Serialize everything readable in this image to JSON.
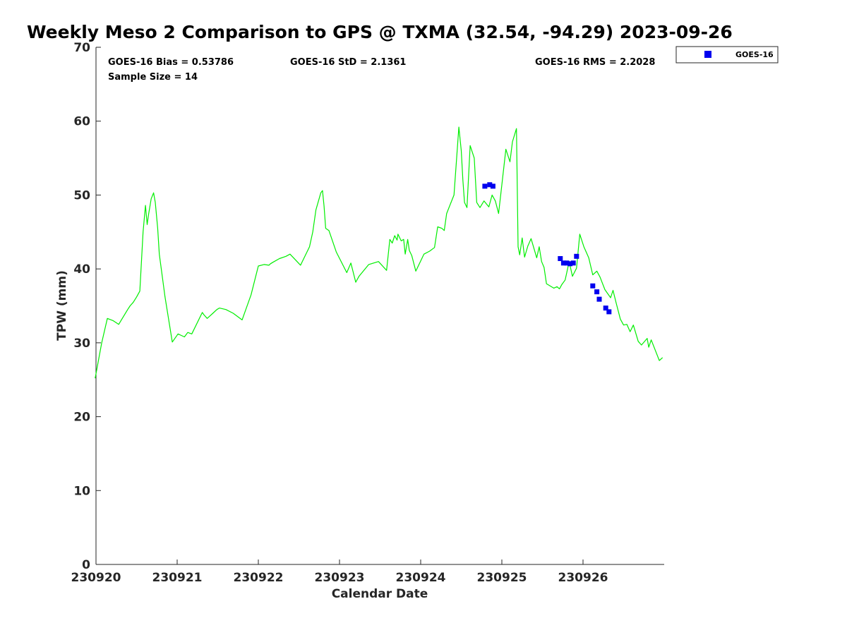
{
  "chart_data": {
    "type": "line",
    "title": "Weekly Meso 2 Comparison to GPS @ TXMA (32.54, -94.29) 2023-09-26",
    "xlabel": "Calendar Date",
    "ylabel": "TPW (mm)",
    "xlim": [
      230920,
      230927
    ],
    "ylim": [
      0,
      70
    ],
    "x_ticks": [
      230920,
      230921,
      230922,
      230923,
      230924,
      230925,
      230926
    ],
    "y_ticks": [
      0,
      10,
      20,
      30,
      40,
      50,
      60,
      70
    ],
    "x_tick_labels": [
      "230920",
      "230921",
      "230922",
      "230923",
      "230924",
      "230925",
      "230926"
    ],
    "y_tick_labels": [
      "0",
      "10",
      "20",
      "30",
      "40",
      "50",
      "60",
      "70"
    ],
    "stats": {
      "bias": "GOES-16 Bias = 0.53786",
      "std": "GOES-16 StD = 2.1361",
      "rms": "GOES-16 RMS = 2.2028",
      "sample": "Sample Size = 14"
    },
    "legend": {
      "placement": "top-right-outside",
      "entries": [
        "GOES-16"
      ]
    },
    "grid": false,
    "series": [
      {
        "kind": "line",
        "color": "#00ee00",
        "x": [
          230919.99,
          230920.07,
          230920.14,
          230920.21,
          230920.28,
          230920.39,
          230920.42,
          230920.46,
          230920.5,
          230920.54,
          230920.58,
          230920.61,
          230920.63,
          230920.65,
          230920.68,
          230920.71,
          230920.73,
          230920.76,
          230920.78,
          230920.85,
          230920.94,
          230921.01,
          230921.09,
          230921.13,
          230921.18,
          230921.31,
          230921.33,
          230921.37,
          230921.41,
          230921.44,
          230921.49,
          230921.52,
          230921.6,
          230921.69,
          230921.8,
          230921.91,
          230922.0,
          230922.07,
          230922.13,
          230922.15,
          230922.18,
          230922.26,
          230922.34,
          230922.39,
          230922.52,
          230922.63,
          230922.67,
          230922.71,
          230922.77,
          230922.79,
          230922.81,
          230922.83,
          230922.87,
          230922.96,
          230923.09,
          230923.14,
          230923.2,
          230923.24,
          230923.36,
          230923.48,
          230923.58,
          230923.62,
          230923.65,
          230923.68,
          230923.71,
          230923.72,
          230923.76,
          230923.79,
          230923.81,
          230923.84,
          230923.86,
          230923.89,
          230923.94,
          230924.04,
          230924.11,
          230924.17,
          230924.21,
          230924.26,
          230924.29,
          230924.32,
          230924.41,
          230924.47,
          230924.5,
          230924.52,
          230924.54,
          230924.57,
          230924.61,
          230924.66,
          230924.69,
          230924.73,
          230924.78,
          230924.81,
          230924.84,
          230924.88,
          230924.92,
          230924.96,
          230925.05,
          230925.1,
          230925.13,
          230925.18,
          230925.2,
          230925.22,
          230925.25,
          230925.28,
          230925.32,
          230925.36,
          230925.43,
          230925.46,
          230925.49,
          230925.52,
          230925.55,
          230925.64,
          230925.68,
          230925.71,
          230925.74,
          230925.78,
          230925.83,
          230925.87,
          230925.92,
          230925.96,
          230926.01,
          230926.07,
          230926.12,
          230926.17,
          230926.21,
          230926.27,
          230926.34,
          230926.37,
          230926.41,
          230926.46,
          230926.5,
          230926.54,
          230926.58,
          230926.62,
          230926.68,
          230926.72,
          230926.79,
          230926.81,
          230926.84,
          230926.94,
          230926.98
        ],
        "y": [
          25.2,
          30.0,
          33.3,
          33.0,
          32.5,
          34.5,
          35.0,
          35.5,
          36.2,
          37.0,
          45.0,
          48.6,
          46.0,
          47.5,
          49.5,
          50.3,
          49.0,
          45.5,
          42.0,
          36.2,
          30.1,
          31.2,
          30.8,
          31.4,
          31.2,
          34.1,
          33.8,
          33.3,
          33.7,
          34.0,
          34.5,
          34.7,
          34.5,
          34.0,
          33.1,
          36.5,
          40.4,
          40.6,
          40.5,
          40.7,
          40.9,
          41.4,
          41.7,
          42.0,
          40.5,
          43.0,
          45.0,
          48.0,
          50.3,
          50.6,
          48.5,
          45.5,
          45.2,
          42.3,
          39.5,
          40.8,
          38.2,
          39.0,
          40.6,
          41.0,
          39.8,
          44.0,
          43.5,
          44.5,
          43.9,
          44.7,
          43.8,
          44.0,
          42.0,
          44.0,
          42.5,
          41.8,
          39.7,
          42.0,
          42.4,
          42.9,
          45.7,
          45.5,
          45.2,
          47.5,
          50.0,
          59.2,
          56.0,
          52.0,
          49.0,
          48.3,
          56.7,
          55.0,
          49.0,
          48.3,
          49.2,
          48.8,
          48.4,
          50.0,
          49.2,
          47.5,
          56.2,
          54.5,
          57.2,
          59.0,
          43.0,
          41.9,
          44.2,
          41.6,
          43.1,
          44.1,
          41.5,
          43.0,
          41.0,
          40.2,
          38.0,
          37.4,
          37.6,
          37.3,
          37.9,
          38.5,
          41.0,
          39.0,
          40.1,
          44.7,
          43.0,
          41.5,
          39.2,
          39.7,
          38.9,
          37.2,
          36.1,
          37.1,
          35.3,
          33.2,
          32.4,
          32.5,
          31.5,
          32.4,
          30.2,
          29.7,
          30.6,
          29.4,
          30.4,
          27.6,
          28.0
        ]
      },
      {
        "name": "GOES-16",
        "kind": "scatter",
        "color": "#0000ee",
        "marker": "square",
        "x": [
          230924.79,
          230924.85,
          230924.89,
          230925.72,
          230925.76,
          230925.8,
          230925.84,
          230925.88,
          230925.92,
          230926.12,
          230926.17,
          230926.2,
          230926.28,
          230926.32
        ],
        "y": [
          51.2,
          51.4,
          51.2,
          41.4,
          40.8,
          40.8,
          40.7,
          40.8,
          41.7,
          37.7,
          36.9,
          35.9,
          34.7,
          34.2
        ]
      }
    ]
  }
}
